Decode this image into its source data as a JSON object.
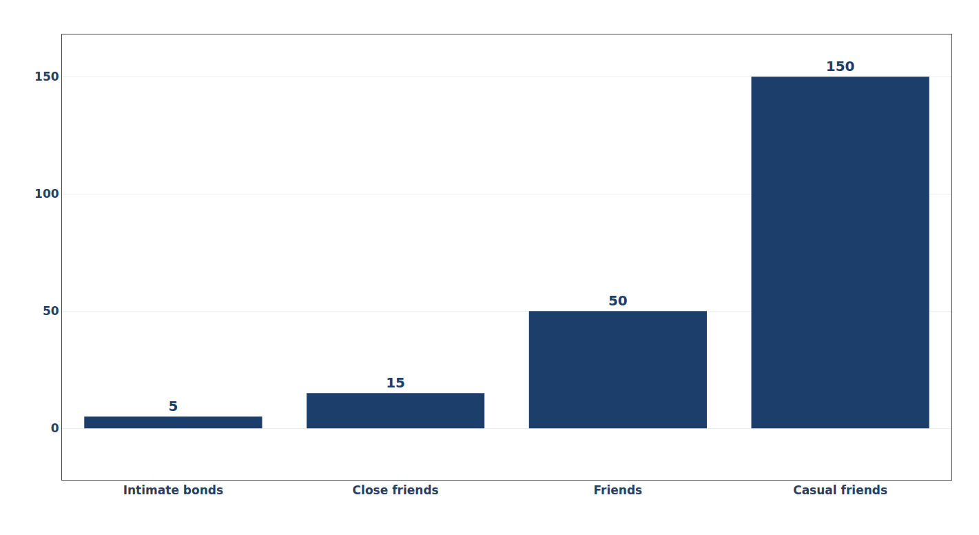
{
  "chart_data": {
    "type": "bar",
    "categories": [
      "Intimate bonds",
      "Close friends",
      "Friends",
      "Casual friends"
    ],
    "values": [
      5,
      15,
      50,
      150
    ],
    "color": "#1b3f6a",
    "ylim": [
      -22,
      168
    ],
    "yticks": [
      0,
      50,
      100,
      150
    ],
    "grid": true,
    "data_labels": true
  }
}
